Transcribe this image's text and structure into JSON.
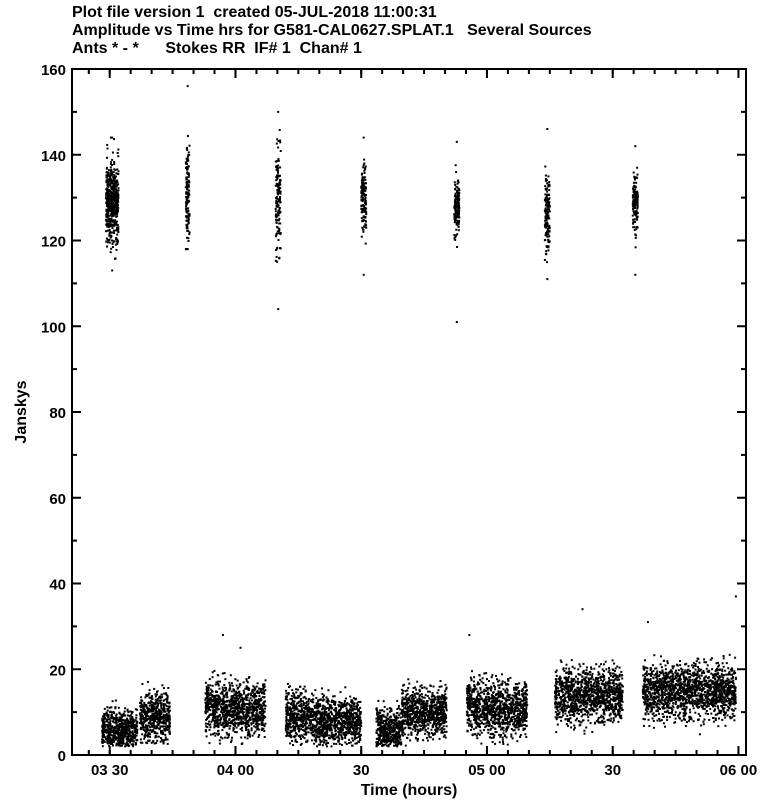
{
  "chart_data": {
    "type": "scatter",
    "header": {
      "line1": "Plot file version 1  created 05-JUL-2018 11:00:31",
      "line2": "Amplitude vs Time hrs for G581-CAL0627.SPLAT.1   Several Sources",
      "line3": "Ants * - *      Stokes RR  IF# 1  Chan# 1"
    },
    "xlabel": "Time (hours)",
    "ylabel": "Janskys",
    "xlim": [
      3.35,
      6.03
    ],
    "ylim": [
      0,
      160
    ],
    "yticks": [
      0,
      20,
      40,
      60,
      80,
      100,
      120,
      140,
      160
    ],
    "xticks": [
      {
        "value": 3.5,
        "label": "03 30"
      },
      {
        "value": 4.0,
        "label": "04 00"
      },
      {
        "value": 4.5,
        "label": "30"
      },
      {
        "value": 5.0,
        "label": "05 00"
      },
      {
        "value": 5.5,
        "label": "30"
      },
      {
        "value": 6.0,
        "label": "06 00"
      }
    ],
    "grid": false,
    "marker_color": "#000000",
    "calibrator_scans": [
      {
        "t": 3.51,
        "width": 0.05,
        "mean": 129,
        "spread": 7,
        "min": 113,
        "max": 144
      },
      {
        "t": 3.81,
        "width": 0.015,
        "mean": 130,
        "spread": 8,
        "min": 118,
        "max": 156
      },
      {
        "t": 4.17,
        "width": 0.02,
        "mean": 130,
        "spread": 9,
        "min": 104,
        "max": 150
      },
      {
        "t": 4.51,
        "width": 0.02,
        "mean": 130,
        "spread": 6,
        "min": 112,
        "max": 144
      },
      {
        "t": 4.88,
        "width": 0.02,
        "mean": 128,
        "spread": 5,
        "min": 101,
        "max": 143
      },
      {
        "t": 5.24,
        "width": 0.02,
        "mean": 127,
        "spread": 6,
        "min": 111,
        "max": 146
      },
      {
        "t": 5.59,
        "width": 0.02,
        "mean": 128,
        "spread": 5,
        "min": 112,
        "max": 142
      }
    ],
    "target_scans": [
      {
        "t0": 3.47,
        "t1": 3.61,
        "mean": 6,
        "spread": 3.5
      },
      {
        "t0": 3.62,
        "t1": 3.74,
        "mean": 9,
        "spread": 4
      },
      {
        "t0": 3.88,
        "t1": 4.12,
        "mean": 11,
        "spread": 4.5
      },
      {
        "t0": 4.2,
        "t1": 4.3,
        "mean": 9,
        "spread": 4
      },
      {
        "t0": 4.3,
        "t1": 4.5,
        "mean": 8,
        "spread": 4
      },
      {
        "t0": 4.56,
        "t1": 4.66,
        "mean": 6,
        "spread": 3.5
      },
      {
        "t0": 4.66,
        "t1": 4.84,
        "mean": 10,
        "spread": 4
      },
      {
        "t0": 4.92,
        "t1": 5.16,
        "mean": 11,
        "spread": 4.5
      },
      {
        "t0": 5.27,
        "t1": 5.54,
        "mean": 14,
        "spread": 4.5
      },
      {
        "t0": 5.62,
        "t1": 5.99,
        "mean": 15,
        "spread": 4.5
      }
    ],
    "outliers": [
      {
        "t": 3.95,
        "y": 28
      },
      {
        "t": 4.02,
        "y": 25
      },
      {
        "t": 4.93,
        "y": 28
      },
      {
        "t": 5.38,
        "y": 34
      },
      {
        "t": 5.64,
        "y": 31
      },
      {
        "t": 5.99,
        "y": 37
      }
    ]
  }
}
